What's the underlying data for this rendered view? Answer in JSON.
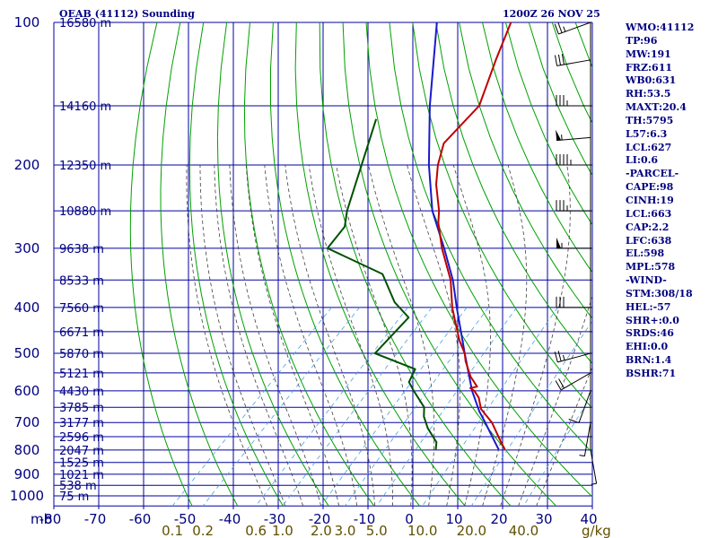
{
  "header": {
    "title": "OEAB (41112) Sounding",
    "time": "1200Z 26 NOV 25"
  },
  "side_panel": [
    "WMO:41112",
    "TP:96",
    "MW:191",
    "FRZ:611",
    "WB0:631",
    "RH:53.5",
    "MAXT:20.4",
    "TH:5795",
    "L57:6.3",
    "LCL:627",
    "LI:0.6",
    "-PARCEL-",
    "CAPE:98",
    "CINH:19",
    "LCL:663",
    "CAP:2.2",
    "LFC:638",
    "EL:598",
    "MPL:578",
    "-WIND-",
    "STM:308/18",
    "HEL:-57",
    "SHR+:0.0",
    "SRDS:46",
    "EHI:0.0",
    "BRN:1.4",
    "BSHR:71"
  ],
  "colors": {
    "grid": "#0000a0",
    "dry_adiabats": "#00a000",
    "moist_adiabats": "#404040",
    "mixing_ratio": "#4aa0e0",
    "temperature": "#c00000",
    "dewpoint": "#005000",
    "parcel": "#1a1acc",
    "axis_text": "#000080",
    "mr_text": "#605000",
    "wind": "#000000"
  },
  "chart_data": {
    "type": "skew-t log-p sounding",
    "title": "OEAB (41112) Sounding",
    "x_axis_unit": "mb",
    "x_ticks": [
      "-80",
      "-70",
      "-60",
      "-50",
      "-40",
      "-30",
      "-20",
      "-10",
      "0",
      "10",
      "20",
      "30",
      "40"
    ],
    "x_range": [
      -80,
      40
    ],
    "pressure_ticks": [
      "100",
      "200",
      "300",
      "400",
      "500",
      "600",
      "700",
      "800",
      "900",
      "1000"
    ],
    "pressure_range": [
      100,
      1050
    ],
    "height_labels": [
      {
        "p": 100,
        "label": "16580 m"
      },
      {
        "p": 150,
        "label": "14160 m"
      },
      {
        "p": 200,
        "label": "12350 m"
      },
      {
        "p": 250,
        "label": "10880 m"
      },
      {
        "p": 300,
        "label": "9638 m"
      },
      {
        "p": 350,
        "label": "8533 m"
      },
      {
        "p": 400,
        "label": "7560 m"
      },
      {
        "p": 450,
        "label": "6671 m"
      },
      {
        "p": 500,
        "label": "5870 m"
      },
      {
        "p": 550,
        "label": "5121 m"
      },
      {
        "p": 600,
        "label": "4430 m"
      },
      {
        "p": 650,
        "label": "3785 m"
      },
      {
        "p": 700,
        "label": "3177 m"
      },
      {
        "p": 750,
        "label": "2596 m"
      },
      {
        "p": 800,
        "label": "2047 m"
      },
      {
        "p": 850,
        "label": "1525 m"
      },
      {
        "p": 900,
        "label": "1021 m"
      },
      {
        "p": 950,
        "label": "538 m"
      },
      {
        "p": 1000,
        "label": "75 m"
      }
    ],
    "mixing_ratio_unit": "g/kg",
    "mixing_ratio_labels": [
      "0.1",
      "0.2",
      "0.6",
      "1.0",
      "2.0",
      "3.0",
      "5.0",
      "10.0",
      "20.0",
      "40.0"
    ],
    "mixing_ratio_values": [
      0.1,
      0.2,
      0.6,
      1.0,
      2.0,
      3.0,
      5.0,
      10.0,
      20.0,
      40.0
    ],
    "temperature": [
      {
        "p": 798,
        "t": 20.4
      },
      {
        "p": 760,
        "t": 17.0
      },
      {
        "p": 700,
        "t": 11.5
      },
      {
        "p": 655,
        "t": 6.0
      },
      {
        "p": 620,
        "t": 3.0
      },
      {
        "p": 600,
        "t": 0.5
      },
      {
        "p": 592,
        "t": -1.0
      },
      {
        "p": 588,
        "t": 0.2
      },
      {
        "p": 560,
        "t": -3.5
      },
      {
        "p": 520,
        "t": -8.0
      },
      {
        "p": 500,
        "t": -10.0
      },
      {
        "p": 470,
        "t": -14.0
      },
      {
        "p": 430,
        "t": -19.0
      },
      {
        "p": 400,
        "t": -23.0
      },
      {
        "p": 350,
        "t": -29.5
      },
      {
        "p": 300,
        "t": -38.5
      },
      {
        "p": 265,
        "t": -45.0
      },
      {
        "p": 250,
        "t": -47.5
      },
      {
        "p": 220,
        "t": -54.0
      },
      {
        "p": 200,
        "t": -58.0
      },
      {
        "p": 180,
        "t": -61.5
      },
      {
        "p": 150,
        "t": -62.0
      },
      {
        "p": 120,
        "t": -68.5
      },
      {
        "p": 100,
        "t": -73.5
      }
    ],
    "dewpoint": [
      {
        "p": 798,
        "t": 5.0
      },
      {
        "p": 770,
        "t": 3.5
      },
      {
        "p": 720,
        "t": -1.5
      },
      {
        "p": 680,
        "t": -5.0
      },
      {
        "p": 650,
        "t": -7.0
      },
      {
        "p": 600,
        "t": -13.0
      },
      {
        "p": 575,
        "t": -16.0
      },
      {
        "p": 540,
        "t": -17.5
      },
      {
        "p": 500,
        "t": -30.0
      },
      {
        "p": 420,
        "t": -30.5
      },
      {
        "p": 390,
        "t": -37.0
      },
      {
        "p": 340,
        "t": -46.0
      },
      {
        "p": 300,
        "t": -64.0
      },
      {
        "p": 270,
        "t": -65.0
      },
      {
        "p": 250,
        "t": -68.0
      },
      {
        "p": 200,
        "t": -75.0
      },
      {
        "p": 160,
        "t": -82.0
      }
    ],
    "parcel": [
      {
        "p": 798,
        "t": 19.0
      },
      {
        "p": 700,
        "t": 10.0
      },
      {
        "p": 663,
        "t": 6.2
      },
      {
        "p": 600,
        "t": 0.0
      },
      {
        "p": 500,
        "t": -10.0
      },
      {
        "p": 400,
        "t": -22.0
      },
      {
        "p": 350,
        "t": -29.0
      },
      {
        "p": 300,
        "t": -38.0
      },
      {
        "p": 250,
        "t": -49.0
      },
      {
        "p": 200,
        "t": -60.0
      },
      {
        "p": 150,
        "t": -73.0
      },
      {
        "p": 100,
        "t": -90.0
      }
    ],
    "wind_barbs": [
      {
        "p": 100,
        "dir": 70,
        "kt": 25
      },
      {
        "p": 120,
        "dir": 80,
        "kt": 30
      },
      {
        "p": 150,
        "dir": 90,
        "kt": 35
      },
      {
        "p": 175,
        "dir": 85,
        "kt": 55
      },
      {
        "p": 200,
        "dir": 90,
        "kt": 45
      },
      {
        "p": 250,
        "dir": 90,
        "kt": 35
      },
      {
        "p": 300,
        "dir": 90,
        "kt": 55
      },
      {
        "p": 400,
        "dir": 90,
        "kt": 30
      },
      {
        "p": 500,
        "dir": 75,
        "kt": 25
      },
      {
        "p": 550,
        "dir": 60,
        "kt": 20
      },
      {
        "p": 600,
        "dir": 20,
        "kt": 10
      },
      {
        "p": 700,
        "dir": 10,
        "kt": 5
      },
      {
        "p": 800,
        "dir": 350,
        "kt": 5
      }
    ]
  }
}
